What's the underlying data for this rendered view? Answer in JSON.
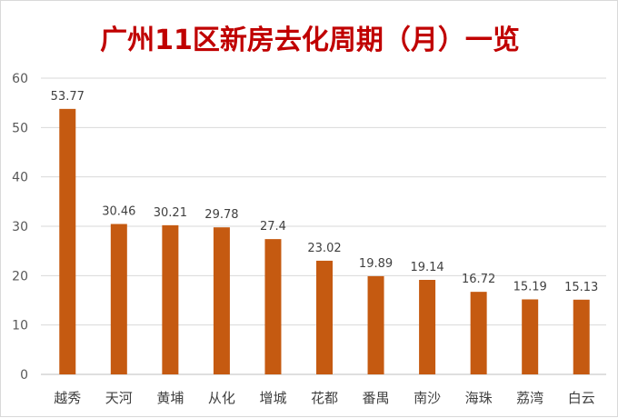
{
  "chart_data": {
    "type": "bar",
    "title": "广州11区新房去化周期（月）一览",
    "categories": [
      "越秀",
      "天河",
      "黄埔",
      "从化",
      "增城",
      "花都",
      "番禺",
      "南沙",
      "海珠",
      "荔湾",
      "白云"
    ],
    "values": [
      53.77,
      30.46,
      30.21,
      29.78,
      27.4,
      23.02,
      19.89,
      19.14,
      16.72,
      15.19,
      15.13
    ],
    "value_labels": [
      "53.77",
      "30.46",
      "30.21",
      "29.78",
      "27.4",
      "23.02",
      "19.89",
      "19.14",
      "16.72",
      "15.19",
      "15.13"
    ],
    "yticks": [
      "0",
      "10",
      "20",
      "30",
      "40",
      "50",
      "60"
    ],
    "ylim": [
      0,
      60
    ],
    "xlabel": "",
    "ylabel": "",
    "grid": true,
    "legend": "none",
    "colors": {
      "bar": "#c55a11",
      "title": "#c00000",
      "grid": "#d9d9d9"
    }
  }
}
